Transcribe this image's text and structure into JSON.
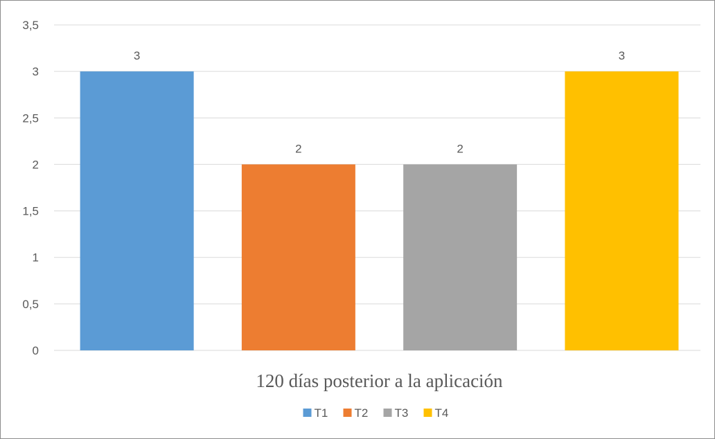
{
  "chart_data": {
    "type": "bar",
    "categories": [
      "T1",
      "T2",
      "T3",
      "T4"
    ],
    "values": [
      3,
      2,
      2,
      3
    ],
    "data_labels": [
      "3",
      "2",
      "2",
      "3"
    ],
    "colors": [
      "#5b9bd5",
      "#ed7d31",
      "#a5a5a5",
      "#ffc000"
    ],
    "xlabel": "120 días posterior a la aplicación",
    "ylabel": "",
    "title": "",
    "ylim": [
      0,
      3.5
    ],
    "yticks": [
      0,
      0.5,
      1,
      1.5,
      2,
      2.5,
      3,
      3.5
    ],
    "ytick_labels": [
      "0",
      "0,5",
      "1",
      "1,5",
      "2",
      "2,5",
      "3",
      "3,5"
    ],
    "grid": true,
    "legend_position": "bottom",
    "legend": [
      "T1",
      "T2",
      "T3",
      "T4"
    ]
  }
}
